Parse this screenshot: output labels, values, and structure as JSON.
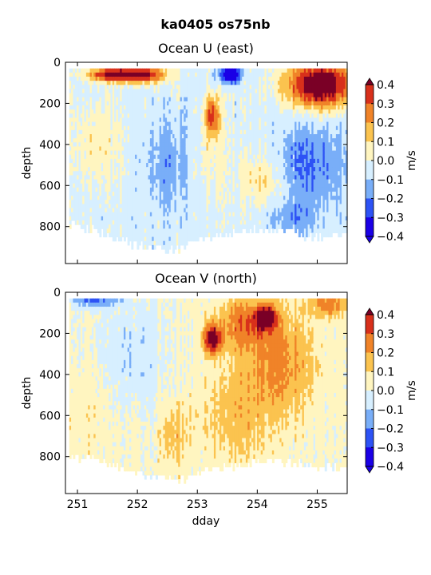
{
  "figure": {
    "suptitle": "ka0405 os75nb",
    "xlabel": "dday"
  },
  "colors": {
    "levels": [
      "#1a00e6",
      "#2d52f5",
      "#79aef8",
      "#d7efff",
      "#fff5c0",
      "#fbc34f",
      "#f08328",
      "#d8301b",
      "#7a0026"
    ],
    "axis": "#000000"
  },
  "chart_data": [
    {
      "type": "heatmap",
      "title": "Ocean U (east)",
      "ylabel": "depth",
      "colorbar_label": "m/s",
      "xlim": [
        250.8,
        255.5
      ],
      "ylim": [
        0,
        980
      ],
      "y_inverted": true,
      "xticks": [
        251,
        252,
        253,
        254,
        255
      ],
      "yticks": [
        0,
        200,
        400,
        600,
        800
      ],
      "colorbar_ticks": [
        0.4,
        0.3,
        0.2,
        0.1,
        0.0,
        -0.1,
        -0.2,
        -0.3,
        -0.4
      ],
      "colorbar_tick_labels": [
        "0.4",
        "0.3",
        "0.2",
        "0.1",
        "0.0",
        "−0.1",
        "−0.2",
        "−0.3",
        "−0.4"
      ],
      "level_edges": [
        -0.4,
        -0.3,
        -0.2,
        -0.1,
        0.0,
        0.1,
        0.2,
        0.3,
        0.4
      ],
      "bottom_depth_profile": {
        "x": [
          250.85,
          251.2,
          251.6,
          252.0,
          252.4,
          252.7,
          253.0,
          253.3,
          253.7,
          254.1,
          254.5,
          254.9,
          255.3,
          255.5
        ],
        "depth": [
          780,
          800,
          850,
          880,
          890,
          900,
          860,
          830,
          820,
          800,
          810,
          840,
          830,
          820
        ]
      },
      "features": [
        {
          "x": 252.05,
          "depth": 60,
          "sx": 0.45,
          "sy": 40,
          "v": 0.48
        },
        {
          "x": 251.5,
          "depth": 60,
          "sx": 0.35,
          "sy": 30,
          "v": 0.4
        },
        {
          "x": 255.05,
          "depth": 110,
          "sx": 0.55,
          "sy": 110,
          "v": 0.6
        },
        {
          "x": 253.25,
          "depth": 260,
          "sx": 0.12,
          "sy": 100,
          "v": 0.4
        },
        {
          "x": 253.55,
          "depth": 60,
          "sx": 0.18,
          "sy": 40,
          "v": -0.45
        },
        {
          "x": 251.35,
          "depth": 400,
          "sx": 0.4,
          "sy": 200,
          "v": 0.12
        },
        {
          "x": 254.1,
          "depth": 580,
          "sx": 0.35,
          "sy": 120,
          "v": 0.14
        },
        {
          "x": 252.5,
          "depth": 500,
          "sx": 0.35,
          "sy": 200,
          "v": -0.12
        },
        {
          "x": 254.9,
          "depth": 500,
          "sx": 0.55,
          "sy": 200,
          "v": -0.18
        },
        {
          "x": 254.6,
          "depth": 760,
          "sx": 0.4,
          "sy": 80,
          "v": -0.12
        },
        {
          "x": 253.2,
          "depth": 480,
          "sx": 0.25,
          "sy": 150,
          "v": 0.08
        }
      ],
      "baseline_value": -0.04
    },
    {
      "type": "heatmap",
      "title": "Ocean V (north)",
      "ylabel": "depth",
      "colorbar_label": "m/s",
      "xlim": [
        250.8,
        255.5
      ],
      "ylim": [
        0,
        980
      ],
      "y_inverted": true,
      "xticks": [
        251,
        252,
        253,
        254,
        255
      ],
      "yticks": [
        0,
        200,
        400,
        600,
        800
      ],
      "colorbar_ticks": [
        0.4,
        0.3,
        0.2,
        0.1,
        0.0,
        -0.1,
        -0.2,
        -0.3,
        -0.4
      ],
      "colorbar_tick_labels": [
        "0.4",
        "0.3",
        "0.2",
        "0.1",
        "0.0",
        "−0.1",
        "−0.2",
        "−0.3",
        "−0.4"
      ],
      "level_edges": [
        -0.4,
        -0.3,
        -0.2,
        -0.1,
        0.0,
        0.1,
        0.2,
        0.3,
        0.4
      ],
      "bottom_depth_profile": {
        "x": [
          250.85,
          251.2,
          251.6,
          252.0,
          252.4,
          252.7,
          253.0,
          253.3,
          253.7,
          254.1,
          254.5,
          254.9,
          255.3,
          255.5
        ],
        "depth": [
          790,
          800,
          830,
          870,
          890,
          910,
          870,
          840,
          830,
          810,
          820,
          830,
          840,
          830
        ]
      },
      "features": [
        {
          "x": 253.25,
          "depth": 230,
          "sx": 0.15,
          "sy": 70,
          "v": 0.45
        },
        {
          "x": 254.15,
          "depth": 120,
          "sx": 0.15,
          "sy": 50,
          "v": 0.45
        },
        {
          "x": 253.8,
          "depth": 150,
          "sx": 0.5,
          "sy": 120,
          "v": 0.24
        },
        {
          "x": 255.2,
          "depth": 60,
          "sx": 0.3,
          "sy": 60,
          "v": 0.24
        },
        {
          "x": 254.4,
          "depth": 350,
          "sx": 0.6,
          "sy": 250,
          "v": 0.2
        },
        {
          "x": 253.6,
          "depth": 600,
          "sx": 0.6,
          "sy": 250,
          "v": 0.13
        },
        {
          "x": 251.3,
          "depth": 40,
          "sx": 0.4,
          "sy": 35,
          "v": -0.22
        },
        {
          "x": 251.9,
          "depth": 300,
          "sx": 0.5,
          "sy": 250,
          "v": -0.1
        },
        {
          "x": 251.1,
          "depth": 600,
          "sx": 0.35,
          "sy": 250,
          "v": 0.06
        },
        {
          "x": 252.6,
          "depth": 700,
          "sx": 0.25,
          "sy": 150,
          "v": 0.12
        }
      ],
      "baseline_value": 0.02
    }
  ]
}
